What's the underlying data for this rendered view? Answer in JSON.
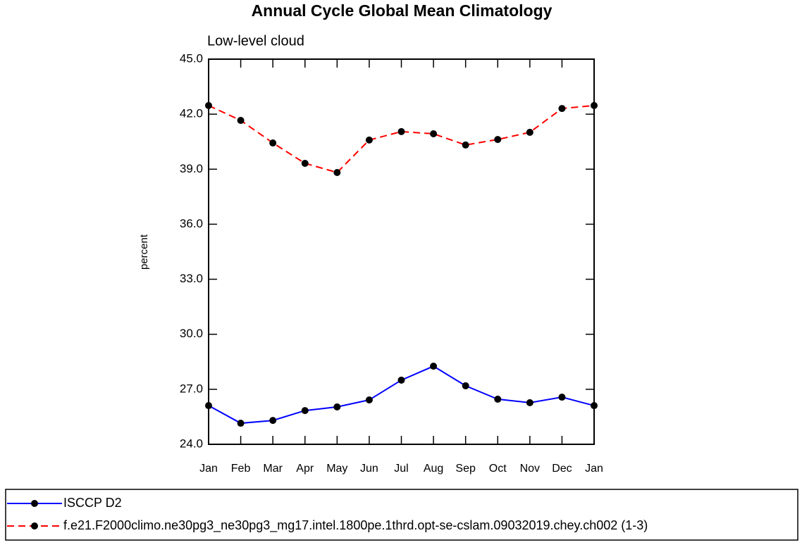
{
  "chart_data": {
    "type": "line",
    "title": "Annual Cycle Global Mean Climatology",
    "subtitle": "Low-level cloud",
    "y_label": "percent",
    "categories": [
      "Jan",
      "Feb",
      "Mar",
      "Apr",
      "May",
      "Jun",
      "Jul",
      "Aug",
      "Sep",
      "Oct",
      "Nov",
      "Dec",
      "Jan"
    ],
    "series": [
      {
        "name": "ISCCP D2",
        "color": "#0000ff",
        "dash": "solid",
        "values": [
          26.11,
          25.15,
          25.3,
          25.84,
          26.04,
          26.42,
          27.5,
          28.26,
          27.19,
          26.46,
          26.27,
          26.57,
          26.11
        ]
      },
      {
        "name": "f.e21.F2000climo.ne30pg3_ne30pg3_mg17.intel.1800pe.1thrd.opt-se-cslam.09032019.chey.ch002 (1-3)",
        "color": "#ff0000",
        "dash": "dashed",
        "values": [
          42.47,
          41.66,
          40.43,
          39.32,
          38.82,
          40.59,
          41.05,
          40.93,
          40.32,
          40.62,
          41.01,
          42.31,
          42.47
        ]
      }
    ],
    "ylim": [
      24.0,
      45.0
    ],
    "yticks": [
      {
        "value": 24,
        "label": "24.0"
      },
      {
        "value": 27,
        "label": "27.0"
      },
      {
        "value": 30,
        "label": "30.0"
      },
      {
        "value": 33,
        "label": "33.0"
      },
      {
        "value": 36,
        "label": "36.0"
      },
      {
        "value": 39,
        "label": "39.0"
      },
      {
        "value": 42,
        "label": "42.0"
      },
      {
        "value": 45,
        "label": "45.0"
      }
    ],
    "grid": false
  }
}
